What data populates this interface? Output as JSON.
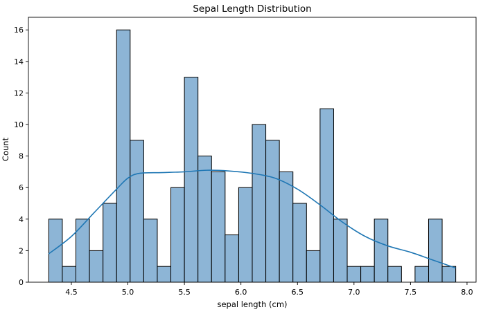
{
  "chart_data": {
    "type": "bar",
    "title": "Sepal Length Distribution",
    "xlabel": "sepal length (cm)",
    "ylabel": "Count",
    "bin_edges": [
      4.3,
      4.42,
      4.54,
      4.66,
      4.78,
      4.9,
      5.02,
      5.14,
      5.26,
      5.38,
      5.5,
      5.62,
      5.74,
      5.86,
      5.98,
      6.1,
      6.22,
      6.34,
      6.46,
      6.58,
      6.7,
      6.82,
      6.94,
      7.06,
      7.18,
      7.3,
      7.42,
      7.54,
      7.66,
      7.78,
      7.9
    ],
    "counts": [
      4,
      1,
      4,
      2,
      5,
      16,
      9,
      4,
      1,
      6,
      13,
      8,
      7,
      3,
      6,
      10,
      9,
      7,
      5,
      2,
      11,
      4,
      1,
      1,
      4,
      1,
      0,
      1,
      4,
      1
    ],
    "kde": {
      "name": "",
      "x": [
        4.3,
        4.5,
        4.7,
        4.9,
        5.0,
        5.1,
        5.3,
        5.5,
        5.7,
        5.9,
        6.1,
        6.3,
        6.5,
        6.7,
        6.9,
        7.1,
        7.3,
        7.5,
        7.7,
        7.9
      ],
      "y": [
        1.8,
        2.9,
        4.4,
        5.9,
        6.6,
        6.9,
        6.95,
        7.0,
        7.1,
        7.05,
        6.9,
        6.6,
        5.9,
        4.9,
        3.8,
        2.9,
        2.3,
        1.9,
        1.4,
        0.9
      ]
    },
    "xlim": [
      4.12,
      8.08
    ],
    "ylim": [
      0,
      16.8
    ],
    "xticks": [
      4.5,
      5.0,
      5.5,
      6.0,
      6.5,
      7.0,
      7.5,
      8.0
    ],
    "xtick_labels": [
      "4.5",
      "5.0",
      "5.5",
      "6.0",
      "6.5",
      "7.0",
      "7.5",
      "8.0"
    ],
    "yticks": [
      0,
      2,
      4,
      6,
      8,
      10,
      12,
      14,
      16
    ],
    "ytick_labels": [
      "0",
      "2",
      "4",
      "6",
      "8",
      "10",
      "12",
      "14",
      "16"
    ],
    "grid": false,
    "colors": {
      "bar_fill": "#8db5d6",
      "bar_edge": "#000000",
      "kde_line": "#1f77b4"
    }
  }
}
